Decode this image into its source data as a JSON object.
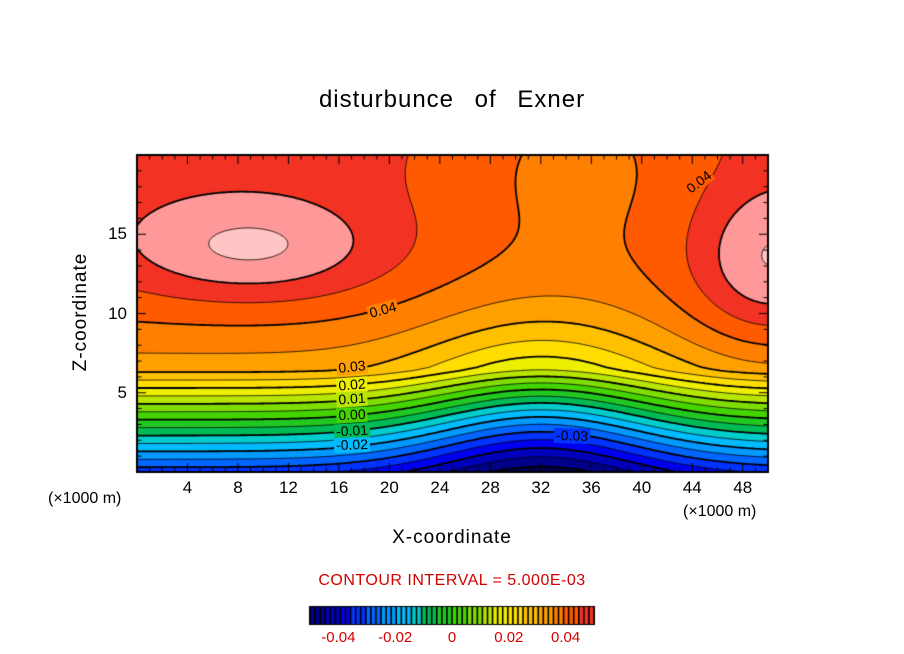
{
  "chart_data": {
    "type": "heatmap",
    "subtype": "filled_contour_plot",
    "title": "disturbunce of Exner",
    "xlabel": "X-coordinate",
    "ylabel": "Z-coordinate",
    "x_unit": "(×1000 m)",
    "z_unit": "(×1000 m)",
    "x_range": [
      0,
      50
    ],
    "z_range": [
      0,
      20
    ],
    "x_ticks": [
      4,
      8,
      12,
      16,
      20,
      24,
      28,
      32,
      36,
      40,
      44,
      48
    ],
    "z_ticks": [
      5,
      10,
      15
    ],
    "contour_interval": 0.005,
    "contour_interval_label": "CONTOUR INTERVAL = 5.000E-03",
    "annotation_color": "#d40000",
    "levels": {
      "min": -0.055,
      "max": 0.06,
      "step": 0.005
    },
    "line_style": {
      "negative": "dashed",
      "positive": "solid",
      "bold_every": 0.01
    },
    "contour_labels": [
      {
        "text": "0.04",
        "x": 19.5,
        "z": 10.2,
        "rot": -15
      },
      {
        "text": "0.03",
        "x": 17,
        "z": 6.6,
        "rot": -6
      },
      {
        "text": "0.02",
        "x": 17,
        "z": 5.5,
        "rot": -5
      },
      {
        "text": "0.01",
        "x": 17,
        "z": 4.6,
        "rot": -4
      },
      {
        "text": "0.00",
        "x": 17,
        "z": 3.6,
        "rot": -3
      },
      {
        "text": "-0.01",
        "x": 17,
        "z": 2.6,
        "rot": -3
      },
      {
        "text": "-0.02",
        "x": 17,
        "z": 1.7,
        "rot": -2
      },
      {
        "text": "-0.03",
        "x": 34.5,
        "z": 2.3,
        "rot": 2
      },
      {
        "text": "0.04",
        "x": 44.5,
        "z": 18.3,
        "rot": -38
      }
    ],
    "field_model": {
      "base": {
        "z_break": 6.5,
        "slope": 0.01,
        "intercept": -0.033,
        "upper_amp": 0.0175,
        "upper_tau": 5.5
      },
      "anomalies": [
        {
          "amp": -0.018,
          "x0": 32,
          "sx": 10,
          "z0": 4,
          "sz": 6
        },
        {
          "amp": -0.008,
          "x0": 32,
          "sx": 12,
          "z0": 0,
          "sz": 4
        },
        {
          "amp": 0.011,
          "x0": 9,
          "sx": 10,
          "z0": 14,
          "sz": 3.2
        },
        {
          "amp": 0.012,
          "x0": 50,
          "sx": 6,
          "z0": 13,
          "sz": 5
        },
        {
          "amp": -0.009,
          "x0": 35,
          "sx": 13,
          "z0": 20,
          "sz": 8
        }
      ]
    },
    "bands": [
      {
        "max": -0.05,
        "color": "#000055"
      },
      {
        "max": -0.045,
        "color": "#000088"
      },
      {
        "max": -0.04,
        "color": "#0000bb"
      },
      {
        "max": -0.035,
        "color": "#0000ee"
      },
      {
        "max": -0.03,
        "color": "#0033ff"
      },
      {
        "max": -0.025,
        "color": "#0066ff"
      },
      {
        "max": -0.02,
        "color": "#0099ff"
      },
      {
        "max": -0.015,
        "color": "#00bbff"
      },
      {
        "max": -0.01,
        "color": "#00cccc"
      },
      {
        "max": -0.005,
        "color": "#00bb55"
      },
      {
        "max": 0.0,
        "color": "#22c822"
      },
      {
        "max": 0.005,
        "color": "#44d400"
      },
      {
        "max": 0.01,
        "color": "#7fdd00"
      },
      {
        "max": 0.015,
        "color": "#b8e600"
      },
      {
        "max": 0.02,
        "color": "#eeee00"
      },
      {
        "max": 0.025,
        "color": "#ffdd00"
      },
      {
        "max": 0.03,
        "color": "#ffc000"
      },
      {
        "max": 0.035,
        "color": "#ffa000"
      },
      {
        "max": 0.04,
        "color": "#ff8000"
      },
      {
        "max": 0.045,
        "color": "#ff5a00"
      },
      {
        "max": 0.05,
        "color": "#f23222"
      },
      {
        "max": 0.055,
        "color": "#ff9999"
      },
      {
        "max": 9.0,
        "color": "#ffc4c4"
      }
    ],
    "colorbar": {
      "min": -0.05,
      "max": 0.05,
      "tick_values": [
        -0.04,
        -0.02,
        0,
        0.02,
        0.04
      ],
      "tick_labels": [
        "-0.04",
        "-0.02",
        "0",
        "0.02",
        "0.04"
      ]
    }
  }
}
